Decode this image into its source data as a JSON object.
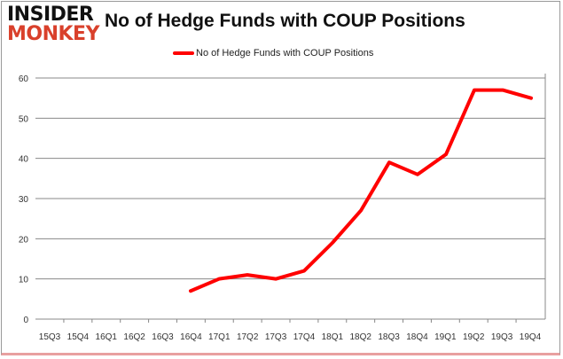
{
  "logo": {
    "line1": "INSIDER",
    "line2": "MONKEY"
  },
  "chart_data": {
    "type": "line",
    "title": "No of Hedge Funds with COUP Positions",
    "legend_position": "top",
    "grid": true,
    "ylim": [
      0,
      60
    ],
    "yticks": [
      0,
      10,
      20,
      30,
      40,
      50,
      60
    ],
    "categories": [
      "15Q3",
      "15Q4",
      "16Q1",
      "16Q2",
      "16Q3",
      "16Q4",
      "17Q1",
      "17Q2",
      "17Q3",
      "17Q4",
      "18Q1",
      "18Q2",
      "18Q3",
      "18Q4",
      "19Q1",
      "19Q2",
      "19Q3",
      "19Q4"
    ],
    "series": [
      {
        "name": "No of Hedge Funds with COUP Positions",
        "color": "#ff0000",
        "values": [
          null,
          null,
          null,
          null,
          null,
          7,
          10,
          11,
          10,
          12,
          19,
          27,
          39,
          36,
          41,
          57,
          57,
          55
        ]
      }
    ]
  }
}
